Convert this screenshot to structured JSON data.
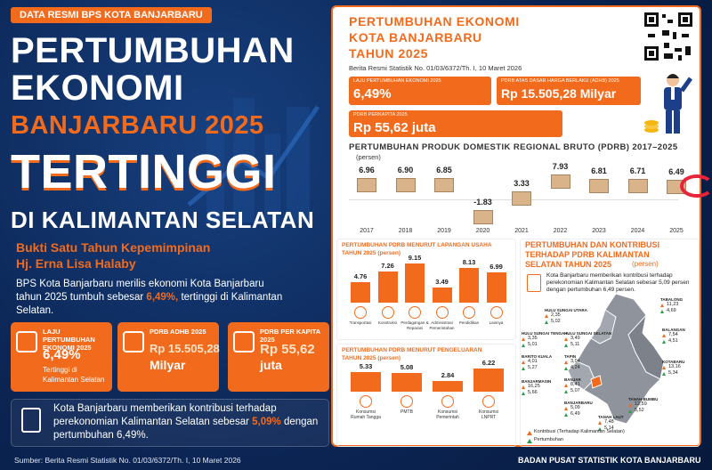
{
  "left": {
    "badge": "DATA RESMI BPS KOTA BANJARBARU",
    "headline": [
      "PERTUMBUHAN",
      "EKONOMI",
      "BANJARBARU 2025",
      "TERTINGGI",
      "DI KALIMANTAN SELATAN"
    ],
    "tagline": [
      "Bukti Satu Tahun Kepemimpinan",
      "Hj. Erna Lisa Halaby"
    ],
    "intro": {
      "text": "BPS Kota Banjarbaru merilis ekonomi Kota Banjarbaru tahun 2025 tumbuh sebesar",
      "highlight": "6,49%,",
      "tail": "tertinggi di Kalimantan Selatan."
    },
    "cards": [
      {
        "label": "LAJU PERTUMBUHAN EKONOMI 2025",
        "value": "6,49%",
        "note": "Tertinggi di Kalimantan Selatan"
      },
      {
        "label": "PDRB ADHB 2025",
        "value": "Rp 15.505,28",
        "note": "Milyar"
      },
      {
        "label": "PDRB PER KAPITA 2025",
        "value": "Rp 55,62",
        "note": "juta"
      }
    ],
    "note": {
      "text": "Kota Banjarbaru memberikan kontribusi terhadap perekonomian Kalimantan Selatan sebesar",
      "highlight": "5,09%",
      "tail": "dengan pertumbuhan 6,49%."
    },
    "footer": {
      "source": "Sumber: Berita Resmi Statistik No. 01/03/6372/Th. I, 10 Maret 2026",
      "agency": "BADAN PUSAT STATISTIK  KOTA BANJARBARU"
    }
  },
  "right": {
    "title": [
      "PERTUMBUHAN EKONOMI",
      "KOTA BANJARBARU",
      "TAHUN 2025"
    ],
    "source": "Berita Resmi Statistik No. 01/03/6372/Th. I, 10 Maret 2026",
    "stats": [
      {
        "label": "LAJU PERTUMBUHAN EKONOMI 2025",
        "value": "6,49%"
      },
      {
        "label": "PDRB ATAS DASAR HARGA BERLAKU (ADHB) 2025",
        "value": "Rp 15.505,28 Milyar"
      },
      {
        "label": "PDRB PERKAPITA 2025",
        "value": "Rp 55,62 juta"
      }
    ],
    "pdrb_chart": {
      "title": "PERTUMBUHAN PRODUK DOMESTIK REGIONAL BRUTO (PDRB) 2017–2025",
      "unit": "(persen)",
      "categories": [
        "2017",
        "2018",
        "2019",
        "2020",
        "2021",
        "2022",
        "2023",
        "2024",
        "2025"
      ],
      "values": [
        6.96,
        6.9,
        6.85,
        -1.83,
        3.33,
        7.93,
        6.81,
        6.71,
        6.49
      ],
      "value_labels": [
        "6.96",
        "6.90",
        "6.85",
        "-1.83",
        "3.33",
        "7.93",
        "6.81",
        "6.71",
        "6.49"
      ]
    },
    "sector_chart": {
      "title": [
        "PERTUMBUHAN PDRB MENURUT LAPANGAN USAHA",
        "TAHUN 2025 (persen)"
      ],
      "categories": [
        "Transportasi",
        "Konstruksi",
        "Perdagangan & Reparasi",
        "Administrasi Pemerintahan",
        "Pendidikan",
        "Lainnya"
      ],
      "values": [
        4.76,
        7.26,
        9.15,
        3.49,
        8.13,
        6.99
      ],
      "value_labels": [
        "4.76",
        "7.26",
        "9.15",
        "3.49",
        "8.13",
        "6.99"
      ]
    },
    "expenditure_chart": {
      "title": [
        "PERTUMBUHAN PDRB MENURUT PENGELUARAN",
        "TAHUN 2025 (persen)"
      ],
      "categories": [
        "Konsumsi Rumah Tangga",
        "PMTB",
        "Konsumsi Pemerintah",
        "Konsumsi LNPRT"
      ],
      "values": [
        5.33,
        5.08,
        2.84,
        6.22
      ],
      "value_labels": [
        "5.33",
        "5.08",
        "2.84",
        "6.22"
      ]
    },
    "map": {
      "title": [
        "PERTUMBUHAN DAN KONTRIBUSI",
        "TERHADAP PDRB KALIMANTAN",
        "SELATAN TAHUN 2025"
      ],
      "unit": "(persen)",
      "text": "Kota Banjarbaru memberikan kontribusi terhadap perekonomian Kalimantan Selatan sebesar 5,09 persen dengan pertumbuhan 6,49 persen.",
      "regions": [
        {
          "name": "TABALONG",
          "contribution": "11,23",
          "growth": "4,69"
        },
        {
          "name": "BALANGAN",
          "contribution": "7,54",
          "growth": "4,51"
        },
        {
          "name": "KOTABARU",
          "contribution": "13,16",
          "growth": "5,34"
        },
        {
          "name": "HULU SUNGAI UTARA",
          "contribution": "2,35",
          "growth": "5,02"
        },
        {
          "name": "HULU SUNGAI TENGAH",
          "contribution": "3,35",
          "growth": "5,01"
        },
        {
          "name": "HULU SUNGAI SELATAN",
          "contribution": "3,49",
          "growth": "5,11"
        },
        {
          "name": "BARITO KUALA",
          "contribution": "4,01",
          "growth": "5,27"
        },
        {
          "name": "TAPIN",
          "contribution": "3,04",
          "growth": "4,24"
        },
        {
          "name": "BANJARMASIN",
          "contribution": "16,25",
          "growth": "5,66"
        },
        {
          "name": "BANJAR",
          "contribution": "8,41",
          "growth": "5,07"
        },
        {
          "name": "BANJARBARU",
          "contribution": "5,09",
          "growth": "6,49"
        },
        {
          "name": "TANAH BUMBU",
          "contribution": "12,59",
          "growth": "5,52"
        },
        {
          "name": "TANAH LAUT",
          "contribution": "7,48",
          "growth": "5,14"
        }
      ],
      "legend": [
        "Kontribusi (Terhadap Kalimantan Selatan)",
        "Pertumbuhan"
      ]
    }
  }
}
